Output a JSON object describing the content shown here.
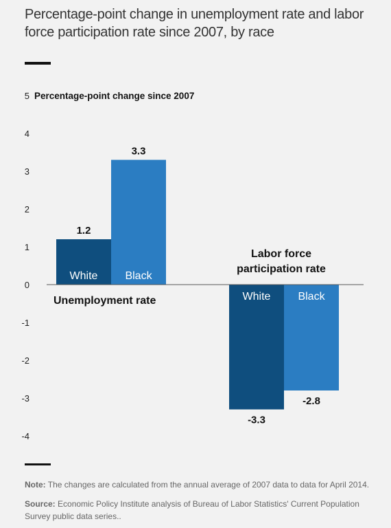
{
  "title": "Percentage-point change in unemployment rate and labor force participation rate since 2007, by race",
  "note": {
    "label": "Note:",
    "text": "The changes are calculated from the annual average of 2007 data to data for April 2014."
  },
  "source": {
    "label": "Source:",
    "text": "Economic Policy Institute analysis of Bureau of Labor Statistics' Current Population Survey public data series.."
  },
  "chart_data": {
    "type": "bar",
    "ylabel": "Percentage-point change since 2007",
    "ylim": [
      -4,
      5
    ],
    "yticks": [
      5,
      4,
      3,
      2,
      1,
      0,
      -1,
      -2,
      -3,
      -4
    ],
    "grid": false,
    "categories": [
      "Unemployment rate",
      "Labor force participation rate"
    ],
    "series": [
      {
        "name": "White",
        "values": [
          1.2,
          -3.3
        ],
        "color": "#0f4e7e"
      },
      {
        "name": "Black",
        "values": [
          3.3,
          -2.8
        ],
        "color": "#2b7dc2"
      }
    ],
    "group_labels": [
      {
        "lines": [
          "Unemployment rate"
        ]
      },
      {
        "lines": [
          "Labor force",
          "participation rate"
        ]
      }
    ],
    "value_labels": [
      [
        "1.2",
        "-3.3"
      ],
      [
        "3.3",
        "-2.8"
      ]
    ]
  }
}
